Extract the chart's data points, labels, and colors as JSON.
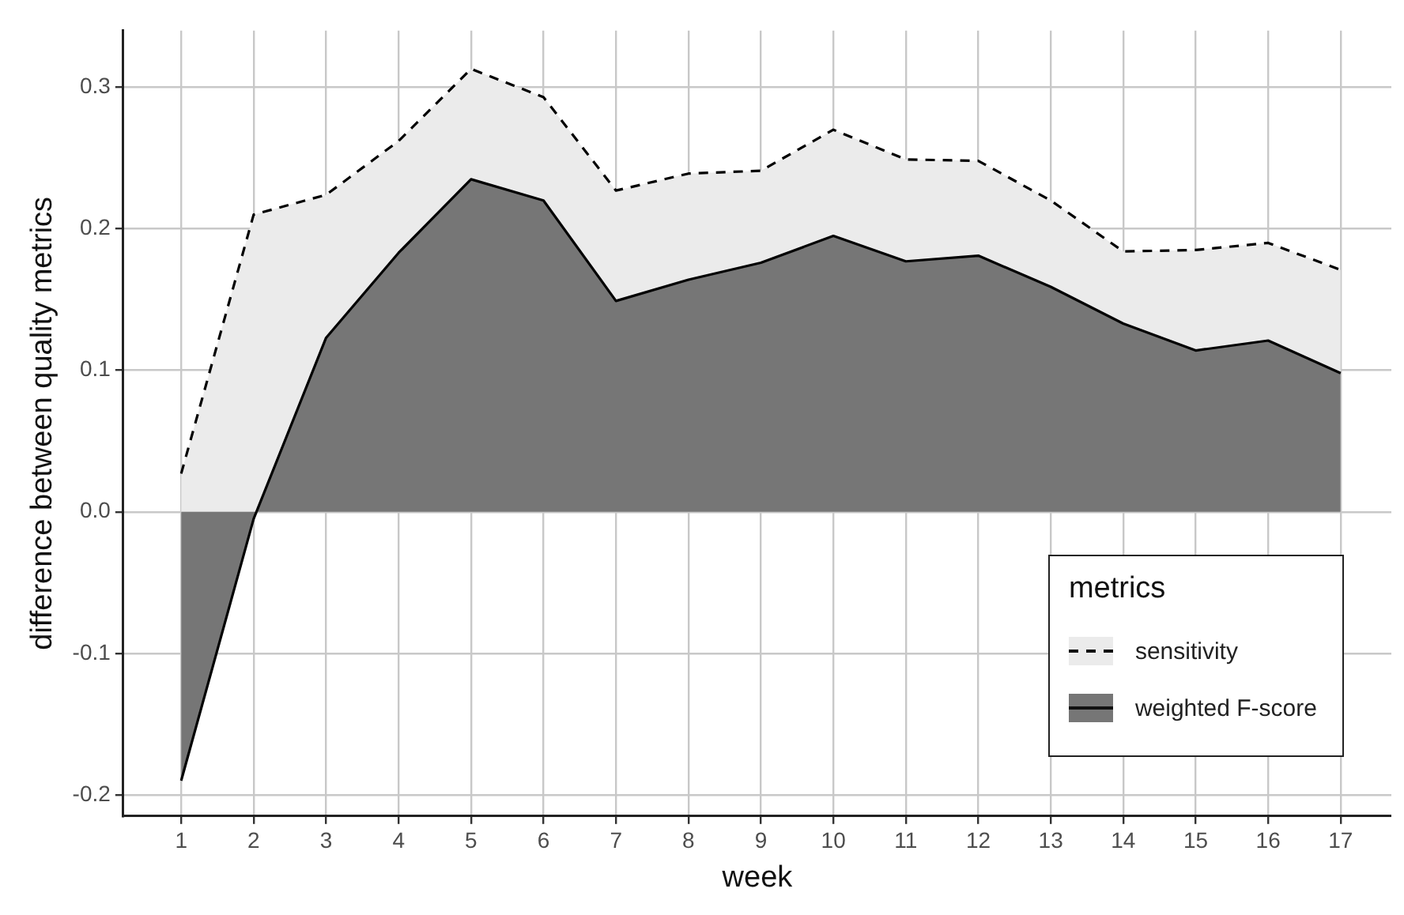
{
  "chart_data": {
    "type": "area",
    "xlabel": "week",
    "ylabel": "difference between quality metrics",
    "legend_title": "metrics",
    "x": [
      1,
      2,
      3,
      4,
      5,
      6,
      7,
      8,
      9,
      10,
      11,
      12,
      13,
      14,
      15,
      16,
      17
    ],
    "series": [
      {
        "name": "sensitivity",
        "color": "#ebebeb",
        "line_style": "dashed",
        "values": [
          0.027,
          0.21,
          0.224,
          0.262,
          0.313,
          0.293,
          0.227,
          0.239,
          0.241,
          0.27,
          0.249,
          0.248,
          0.22,
          0.184,
          0.185,
          0.19,
          0.171
        ]
      },
      {
        "name": "weighted F-score",
        "color": "#767676",
        "line_style": "solid",
        "values": [
          -0.19,
          -0.005,
          0.123,
          0.183,
          0.235,
          0.22,
          0.149,
          0.164,
          0.176,
          0.195,
          0.177,
          0.181,
          0.159,
          0.133,
          0.114,
          0.121,
          0.098
        ]
      }
    ],
    "xlim": [
      0.2,
      17.7
    ],
    "ylim": [
      -0.215,
      0.34
    ],
    "xticks": [
      1,
      2,
      3,
      4,
      5,
      6,
      7,
      8,
      9,
      10,
      11,
      12,
      13,
      14,
      15,
      16,
      17
    ],
    "yticks": [
      -0.2,
      -0.1,
      {
        "value": 0,
        "label": "0.0"
      },
      0.1,
      0.2,
      0.3
    ],
    "grid": true,
    "legend": "bottom right"
  }
}
